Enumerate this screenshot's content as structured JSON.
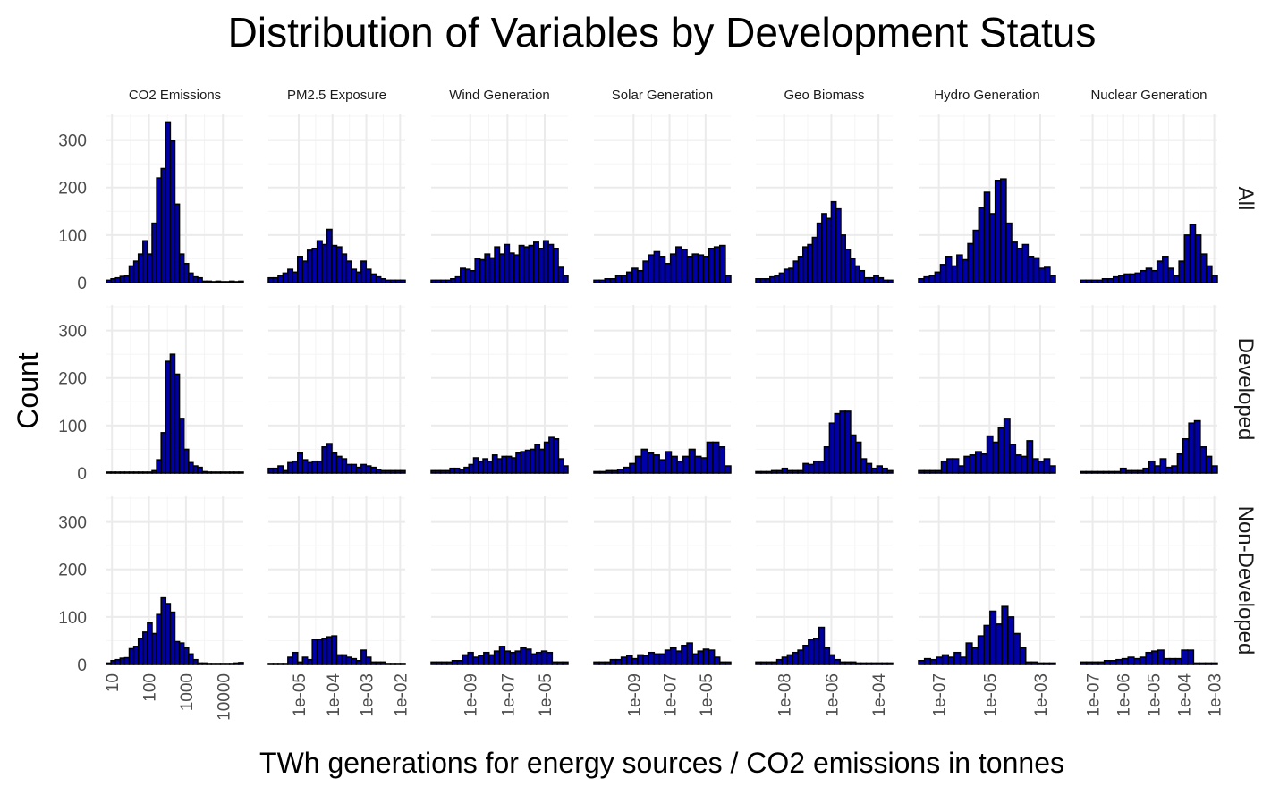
{
  "chart_data": {
    "type": "bar",
    "title": "Distribution of Variables by Development Status",
    "xlabel": "TWh generations for energy sources / CO2 emissions in tonnes",
    "ylabel": "Count",
    "ylim": [
      0,
      350
    ],
    "y_ticks": [
      "0",
      "100",
      "200",
      "300"
    ],
    "y_tick_values": [
      0,
      100,
      200,
      300
    ],
    "bar_fill": "#0000a8",
    "bar_outline": "#000000",
    "grid": true,
    "rows": [
      "All",
      "Developed",
      "Non-Developed"
    ],
    "columns": [
      {
        "name": "CO2 Emissions",
        "x_log10_range": [
          0.85,
          4.55
        ],
        "x_ticks": [
          {
            "label": "10",
            "log10": 1
          },
          {
            "label": "100",
            "log10": 2
          },
          {
            "label": "1000",
            "log10": 3
          },
          {
            "label": "10000",
            "log10": 4
          }
        ],
        "series": {
          "All": [
            5,
            8,
            10,
            13,
            14,
            35,
            45,
            60,
            88,
            60,
            125,
            220,
            240,
            338,
            298,
            165,
            60,
            40,
            20,
            12,
            10,
            3,
            3,
            2,
            3,
            2,
            2,
            3,
            2,
            3
          ],
          "Developed": [
            2,
            2,
            2,
            2,
            2,
            2,
            2,
            2,
            2,
            2,
            5,
            28,
            85,
            235,
            250,
            208,
            115,
            50,
            22,
            15,
            12,
            3,
            2,
            2,
            2,
            2,
            2,
            2,
            2,
            2
          ],
          "Non-Developed": [
            3,
            8,
            10,
            13,
            14,
            33,
            38,
            55,
            68,
            88,
            65,
            105,
            140,
            128,
            110,
            48,
            45,
            35,
            22,
            10,
            3,
            3,
            2,
            2,
            2,
            2,
            2,
            2,
            3,
            4
          ]
        }
      },
      {
        "name": "PM2.5 Exposure",
        "x_log10_range": [
          -5.9,
          -1.85
        ],
        "x_ticks": [
          {
            "label": "1e-05",
            "log10": -5
          },
          {
            "label": "1e-04",
            "log10": -4
          },
          {
            "label": "1e-03",
            "log10": -3
          },
          {
            "label": "1e-02",
            "log10": -2
          }
        ],
        "series": {
          "All": [
            10,
            10,
            15,
            20,
            28,
            22,
            55,
            45,
            68,
            72,
            88,
            80,
            112,
            78,
            75,
            60,
            45,
            28,
            22,
            45,
            28,
            18,
            12,
            8,
            5,
            5,
            5,
            5
          ],
          "Developed": [
            10,
            10,
            15,
            5,
            22,
            25,
            42,
            28,
            22,
            25,
            25,
            55,
            62,
            42,
            35,
            30,
            18,
            18,
            12,
            18,
            15,
            12,
            8,
            5,
            5,
            5,
            5,
            5
          ],
          "Non-Developed": [
            2,
            2,
            2,
            2,
            15,
            25,
            5,
            15,
            10,
            52,
            52,
            55,
            58,
            60,
            20,
            20,
            15,
            12,
            8,
            30,
            15,
            5,
            5,
            5,
            2,
            2,
            2,
            2
          ]
        }
      },
      {
        "name": "Wind Generation",
        "x_log10_range": [
          -11.1,
          -3.75
        ],
        "x_ticks": [
          {
            "label": "1e-09",
            "log10": -9
          },
          {
            "label": "1e-07",
            "log10": -7
          },
          {
            "label": "1e-05",
            "log10": -5
          }
        ],
        "series": {
          "All": [
            5,
            5,
            5,
            5,
            8,
            12,
            30,
            28,
            25,
            50,
            48,
            60,
            52,
            75,
            60,
            80,
            62,
            58,
            78,
            75,
            78,
            85,
            72,
            88,
            80,
            72,
            32,
            15
          ],
          "Developed": [
            5,
            5,
            5,
            5,
            10,
            10,
            8,
            12,
            18,
            32,
            25,
            30,
            25,
            38,
            30,
            35,
            35,
            32,
            42,
            45,
            48,
            50,
            60,
            50,
            65,
            75,
            72,
            30,
            15
          ],
          "Non-Developed": [
            5,
            5,
            5,
            5,
            8,
            8,
            20,
            25,
            15,
            18,
            25,
            20,
            28,
            38,
            28,
            25,
            28,
            35,
            32,
            22,
            25,
            28,
            25,
            5,
            5,
            5
          ]
        }
      },
      {
        "name": "Solar Generation",
        "x_log10_range": [
          -11.2,
          -3.6
        ],
        "x_ticks": [
          {
            "label": "1e-09",
            "log10": -9
          },
          {
            "label": "1e-07",
            "log10": -7
          },
          {
            "label": "1e-05",
            "log10": -5
          }
        ],
        "series": {
          "All": [
            5,
            5,
            8,
            8,
            15,
            15,
            22,
            30,
            25,
            45,
            58,
            65,
            55,
            40,
            60,
            75,
            70,
            55,
            60,
            58,
            55,
            72,
            75,
            78,
            15
          ],
          "Developed": [
            3,
            3,
            5,
            5,
            8,
            12,
            20,
            35,
            50,
            42,
            38,
            28,
            45,
            35,
            25,
            35,
            50,
            35,
            32,
            65,
            65,
            55,
            15
          ],
          "Non-Developed": [
            5,
            5,
            5,
            10,
            10,
            15,
            18,
            12,
            20,
            18,
            25,
            22,
            22,
            30,
            35,
            28,
            40,
            45,
            22,
            28,
            32,
            30,
            15,
            5,
            5
          ]
        }
      },
      {
        "name": "Geo Biomass",
        "x_log10_range": [
          -9.2,
          -3.4
        ],
        "x_ticks": [
          {
            "label": "1e-08",
            "log10": -8
          },
          {
            "label": "1e-06",
            "log10": -6
          },
          {
            "label": "1e-04",
            "log10": -4
          }
        ],
        "series": {
          "All": [
            8,
            8,
            8,
            12,
            15,
            20,
            28,
            30,
            45,
            55,
            75,
            80,
            95,
            125,
            145,
            135,
            170,
            155,
            100,
            70,
            50,
            35,
            25,
            10,
            10,
            15,
            10,
            5,
            5
          ],
          "Developed": [
            3,
            3,
            3,
            5,
            5,
            10,
            5,
            5,
            5,
            20,
            18,
            25,
            25,
            55,
            105,
            125,
            130,
            130,
            80,
            65,
            30,
            20,
            10,
            15,
            10,
            5
          ],
          "Non-Developed": [
            5,
            5,
            5,
            5,
            10,
            15,
            20,
            25,
            30,
            40,
            52,
            55,
            78,
            35,
            20,
            10,
            5,
            5,
            5,
            3,
            3,
            3,
            3,
            3,
            3,
            3
          ]
        }
      },
      {
        "name": "Hydro Generation",
        "x_log10_range": [
          -7.8,
          -2.4
        ],
        "x_ticks": [
          {
            "label": "1e-07",
            "log10": -7
          },
          {
            "label": "1e-05",
            "log10": -5
          },
          {
            "label": "1e-03",
            "log10": -3
          }
        ],
        "series": {
          "All": [
            8,
            12,
            15,
            22,
            38,
            55,
            35,
            58,
            48,
            82,
            110,
            158,
            190,
            145,
            215,
            218,
            125,
            85,
            72,
            80,
            55,
            52,
            30,
            32,
            15
          ],
          "Developed": [
            5,
            5,
            5,
            5,
            25,
            30,
            30,
            15,
            35,
            38,
            45,
            40,
            78,
            65,
            95,
            115,
            60,
            38,
            35,
            68,
            30,
            25,
            30,
            15
          ],
          "Non-Developed": [
            8,
            12,
            10,
            15,
            20,
            15,
            25,
            15,
            45,
            35,
            60,
            82,
            112,
            85,
            122,
            100,
            65,
            35,
            5,
            5,
            3,
            3,
            3
          ]
        }
      },
      {
        "name": "Nuclear Generation",
        "x_log10_range": [
          -7.4,
          -2.9
        ],
        "x_ticks": [
          {
            "label": "1e-07",
            "log10": -7
          },
          {
            "label": "1e-06",
            "log10": -6
          },
          {
            "label": "1e-05",
            "log10": -5
          },
          {
            "label": "1e-04",
            "log10": -4
          },
          {
            "label": "1e-03",
            "log10": -3
          }
        ],
        "series": {
          "All": [
            5,
            5,
            5,
            5,
            8,
            8,
            12,
            15,
            18,
            18,
            20,
            25,
            30,
            25,
            45,
            55,
            30,
            15,
            45,
            100,
            122,
            100,
            60,
            35,
            15
          ],
          "Developed": [
            3,
            3,
            3,
            3,
            3,
            3,
            3,
            10,
            5,
            5,
            5,
            10,
            25,
            15,
            30,
            12,
            15,
            40,
            72,
            105,
            110,
            55,
            35,
            15
          ],
          "Non-Developed": [
            5,
            5,
            5,
            5,
            8,
            8,
            10,
            12,
            15,
            12,
            15,
            25,
            28,
            30,
            12,
            12,
            12,
            30,
            30,
            3,
            3,
            3,
            3
          ]
        }
      }
    ]
  }
}
